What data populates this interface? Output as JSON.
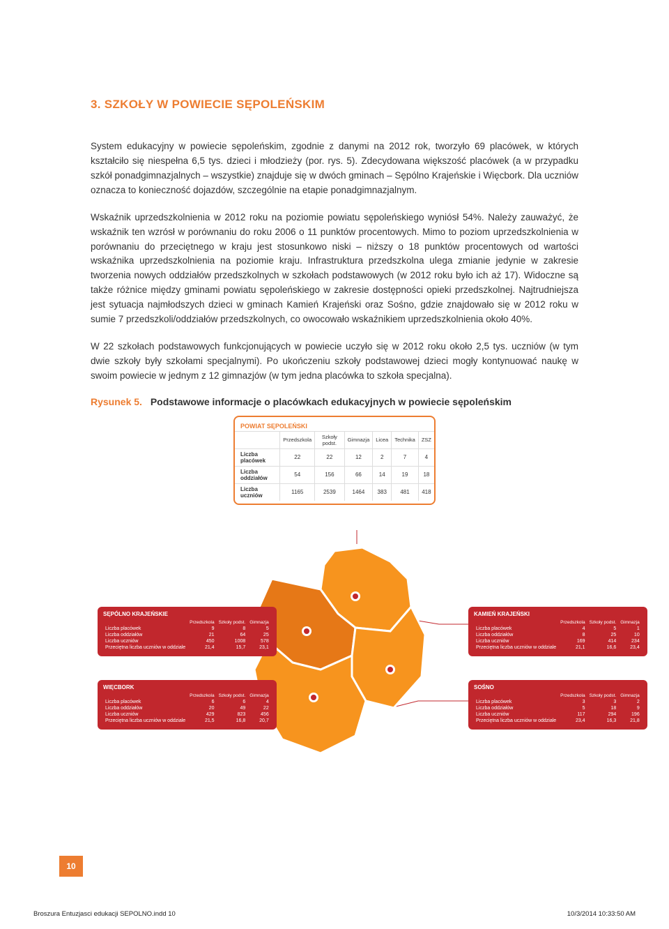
{
  "section_title": "3. SZKOŁY W POWIECIE SĘPOLEŃSKIM",
  "paragraphs": {
    "p1": "System edukacyjny w powiecie sępoleńskim, zgodnie z danymi na 2012 rok, tworzyło 69 placówek, w których kształciło się niespełna 6,5 tys. dzieci i młodzieży (por. rys. 5). Zdecydowana większość placówek (a w przypadku szkół ponadgimnazjalnych – wszystkie) znajduje się w dwóch gminach – Sępólno Krajeńskie i Więcbork. Dla uczniów oznacza to konieczność dojazdów, szczególnie na etapie ponadgimnazjalnym.",
    "p2": "Wskaźnik uprzedszkolnienia w 2012 roku na poziomie powiatu sępoleńskiego wyniósł 54%. Należy zauważyć, że wskaźnik ten wzrósł w porównaniu do roku 2006 o 11 punktów procentowych. Mimo to poziom uprzedszkolnienia w porównaniu do przeciętnego w kraju jest stosunkowo niski – niższy o 18 punktów procentowych od wartości wskaźnika uprzedszkolnienia na poziomie kraju. Infrastruktura przedszkolna ulega zmianie jedynie w zakresie tworzenia nowych oddziałów przedszkolnych w szkołach podstawowych (w 2012 roku było ich aż 17). Widoczne są także różnice między gminami powiatu sępoleńskiego w zakresie dostępności opieki przedszkolnej. Najtrudniejsza jest sytuacja najmłodszych dzieci w gminach Kamień Krajeński oraz Sośno, gdzie znajdowało się w 2012 roku w sumie 7 przedszkoli/oddziałów przedszkolnych, co owocowało wskaźnikiem uprzedszkolnienia około 40%.",
    "p3": "W 22 szkołach podstawowych funkcjonujących w powiecie uczyło się w 2012 roku około 2,5 tys. uczniów (w tym dwie szkoły były szkołami specjalnymi). Po ukończeniu szkoły podstawowej dzieci mogły kontynuować naukę w swoim powiecie w jednym z 12 gimnazjów (w tym jedna placówka to szkoła specjalna)."
  },
  "figure": {
    "number": "Rysunek 5.",
    "title": "Podstawowe informacje o placówkach edukacyjnych w powiecie sępoleńskim"
  },
  "top_table": {
    "title": "POWIAT SĘPOLEŃSKI",
    "columns": [
      "",
      "Przedszkola",
      "Szkoły podst.",
      "Gimnazja",
      "Licea",
      "Technika",
      "ZSZ"
    ],
    "rows": [
      [
        "Liczba placówek",
        "22",
        "22",
        "12",
        "2",
        "7",
        "4"
      ],
      [
        "Liczba oddziałów",
        "54",
        "156",
        "66",
        "14",
        "19",
        "18"
      ],
      [
        "Liczba uczniów",
        "1165",
        "2539",
        "1464",
        "383",
        "481",
        "418"
      ]
    ]
  },
  "gmina_columns": [
    "",
    "Przedszkola",
    "Szkoły podst.",
    "Gimnazja"
  ],
  "gminas": {
    "sepolno": {
      "title": "SĘPÓLNO KRAJEŃSKIE",
      "rows": [
        [
          "Liczba placówek",
          "9",
          "8",
          "5"
        ],
        [
          "Liczba oddziałów",
          "21",
          "64",
          "25"
        ],
        [
          "Liczba uczniów",
          "450",
          "1008",
          "578"
        ],
        [
          "Przeciętna liczba uczniów w oddziale",
          "21,4",
          "15,7",
          "23,1"
        ]
      ]
    },
    "wiecbork": {
      "title": "WIĘCBORK",
      "rows": [
        [
          "Liczba placówek",
          "6",
          "6",
          "4"
        ],
        [
          "Liczba oddziałów",
          "20",
          "49",
          "22"
        ],
        [
          "Liczba uczniów",
          "429",
          "823",
          "456"
        ],
        [
          "Przeciętna liczba uczniów w oddziale",
          "21,5",
          "16,8",
          "20,7"
        ]
      ]
    },
    "kamien": {
      "title": "KAMIEŃ KRAJEŃSKI",
      "rows": [
        [
          "Liczba placówek",
          "4",
          "5",
          "1"
        ],
        [
          "Liczba oddziałów",
          "8",
          "25",
          "10"
        ],
        [
          "Liczba uczniów",
          "169",
          "414",
          "234"
        ],
        [
          "Przeciętna liczba uczniów w oddziale",
          "21,1",
          "16,6",
          "23,4"
        ]
      ]
    },
    "sosno": {
      "title": "SOŚNO",
      "rows": [
        [
          "Liczba placówek",
          "3",
          "3",
          "2"
        ],
        [
          "Liczba oddziałów",
          "5",
          "18",
          "9"
        ],
        [
          "Liczba uczniów",
          "117",
          "294",
          "196"
        ],
        [
          "Przeciętna liczba uczniów w oddziale",
          "23,4",
          "16,3",
          "21,8"
        ]
      ]
    }
  },
  "map": {
    "fill_main": "#f7941e",
    "fill_dark": "#e67817",
    "stroke": "#ffffff",
    "dot_inner": "#c1272d",
    "dot_outer": "#ffffff"
  },
  "page_number": "10",
  "footer": {
    "left": "Broszura Entuzjasci edukacji SEPOLNO.indd   10",
    "right": "10/3/2014   10:33:50 AM"
  },
  "colors": {
    "accent": "#ed7d31",
    "box": "#c1272d",
    "text": "#333333",
    "border": "#dddddd"
  }
}
